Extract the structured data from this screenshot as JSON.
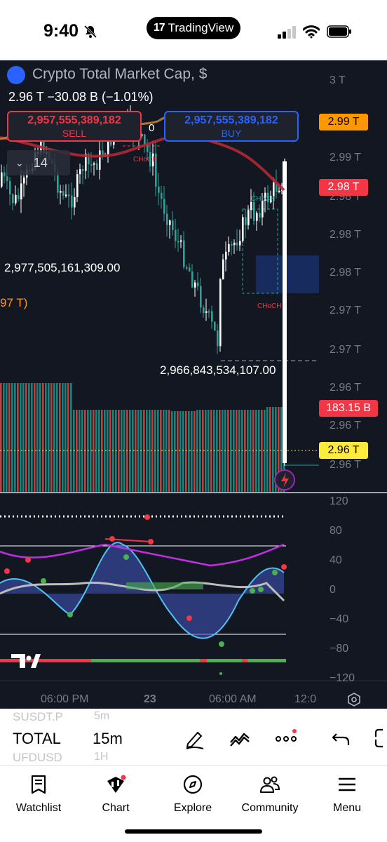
{
  "status": {
    "time": "9:40",
    "app_pill": "TradingView"
  },
  "chart": {
    "symbol_title": "Crypto Total Market Cap, $",
    "last_price": "2.96 T",
    "change": "−30.08 B (−1.01%)",
    "sell": {
      "price": "2,957,555,389,182",
      "label": "SELL"
    },
    "buy": {
      "price": "2,957,555,389,182",
      "label": "BUY"
    },
    "spread": "0",
    "interval_chip": "14",
    "high_label": "2,977,505,161,309.00",
    "low_label": "2,966,843,534,107.00",
    "left_partial": "97 T)",
    "choch_1": "CHoCH",
    "choch_2": "CHoCH",
    "choch_3": "CHoCH",
    "price_axis": [
      "3 T",
      "2.99 T",
      "2.98 T",
      "2.98 T",
      "2.98 T",
      "2.97 T",
      "2.97 T",
      "2.96 T",
      "2.96 T",
      "2.96 T"
    ],
    "tags": {
      "orange": "2.99 T",
      "red": "2.98 T",
      "volume": "183.15 B",
      "yellow": "2.96 T"
    },
    "osc_axis": [
      "120",
      "80",
      "40",
      "0",
      "−40",
      "−80",
      "−120"
    ],
    "time_axis": [
      "06:00 PM",
      "23",
      "06:00 AM",
      "12:0"
    ]
  },
  "toolbar": {
    "ghost_top_symbol": "SUSDT.P",
    "ghost_top_interval": "5m",
    "symbol": "TOTAL",
    "interval": "15m",
    "ghost_bottom_symbol": "UFDUSD",
    "ghost_bottom_interval": "1H"
  },
  "nav": {
    "items": [
      {
        "label": "Watchlist"
      },
      {
        "label": "Chart"
      },
      {
        "label": "Explore"
      },
      {
        "label": "Community"
      },
      {
        "label": "Menu"
      }
    ]
  },
  "colors": {
    "background": "#131722",
    "up": "#26a69a",
    "down": "#ef5350",
    "orange_tag": "#ff9800",
    "red_tag": "#f23645",
    "yellow_tag": "#ffeb3b"
  }
}
